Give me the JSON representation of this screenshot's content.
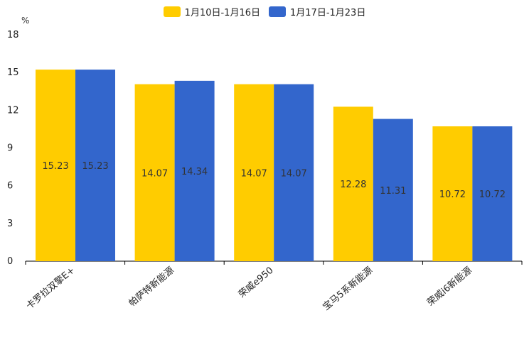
{
  "chart_data": {
    "type": "bar",
    "y_unit": "%",
    "categories": [
      "卡罗拉双擎E+",
      "帕萨特新能源",
      "荣威e950",
      "宝马5系新能源",
      "荣威i6新能源"
    ],
    "series": [
      {
        "name": "1月10日-1月16日",
        "color": "#FFCC00",
        "values": [
          15.23,
          14.07,
          14.07,
          12.28,
          10.72
        ]
      },
      {
        "name": "1月17日-1月23日",
        "color": "#3366CC",
        "values": [
          15.23,
          14.34,
          14.07,
          11.31,
          10.72
        ]
      }
    ],
    "ylim": [
      0,
      18
    ],
    "yticks": [
      0,
      3,
      6,
      9,
      12,
      15,
      18
    ],
    "legend_position": "top-center"
  }
}
